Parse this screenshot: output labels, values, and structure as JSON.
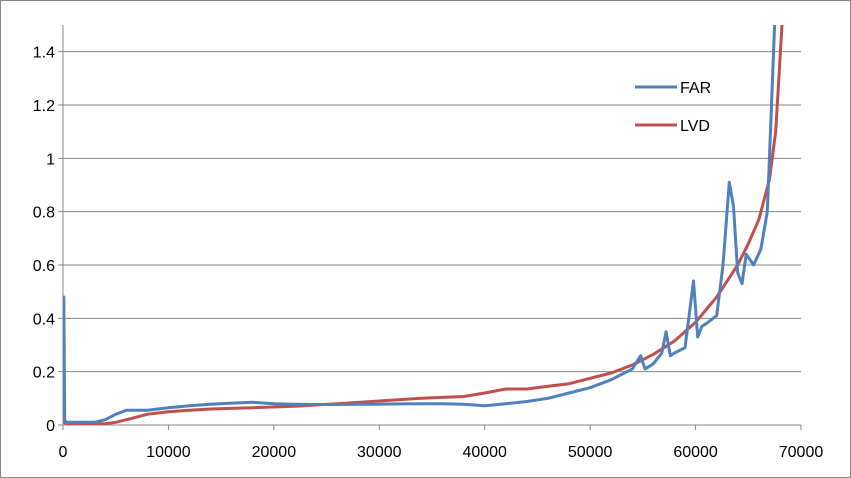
{
  "chart_data": {
    "type": "line",
    "title": "",
    "xlabel": "",
    "ylabel": "",
    "xlim": [
      0,
      70000
    ],
    "ylim": [
      0,
      1.5
    ],
    "x_ticks": [
      0,
      10000,
      20000,
      30000,
      40000,
      50000,
      60000,
      70000
    ],
    "y_ticks": [
      0,
      0.2,
      0.4,
      0.6,
      0.8,
      1,
      1.2,
      1.4
    ],
    "x_tick_labels": [
      "0",
      "10000",
      "20000",
      "30000",
      "40000",
      "50000",
      "60000",
      "70000"
    ],
    "y_tick_labels": [
      "0",
      "0.2",
      "0.4",
      "0.6",
      "0.8",
      "1",
      "1.2",
      "1.4"
    ],
    "grid": true,
    "legend_position": "top-right",
    "series": [
      {
        "name": "FAR",
        "color": "#4F81BD",
        "x": [
          0,
          80,
          160,
          300,
          1000,
          2000,
          3000,
          4000,
          5000,
          6000,
          7000,
          8000,
          9000,
          10000,
          12000,
          14000,
          16000,
          18000,
          20000,
          22000,
          24000,
          26000,
          28000,
          30000,
          32000,
          34000,
          36000,
          38000,
          40000,
          42000,
          44000,
          46000,
          48000,
          50000,
          51000,
          52000,
          53000,
          54000,
          54800,
          55200,
          56000,
          56800,
          57200,
          57600,
          58000,
          59000,
          59800,
          60200,
          60600,
          61000,
          62000,
          62600,
          63200,
          63600,
          64000,
          64400,
          64800,
          65500,
          66200,
          66800,
          67200,
          67500
        ],
        "y": [
          0.01,
          0.48,
          0.02,
          0.01,
          0.01,
          0.01,
          0.01,
          0.02,
          0.04,
          0.055,
          0.055,
          0.055,
          0.06,
          0.065,
          0.072,
          0.078,
          0.082,
          0.085,
          0.08,
          0.078,
          0.077,
          0.077,
          0.078,
          0.078,
          0.079,
          0.08,
          0.08,
          0.078,
          0.072,
          0.08,
          0.088,
          0.1,
          0.12,
          0.14,
          0.155,
          0.17,
          0.19,
          0.21,
          0.26,
          0.21,
          0.23,
          0.27,
          0.35,
          0.26,
          0.27,
          0.29,
          0.54,
          0.33,
          0.37,
          0.38,
          0.41,
          0.6,
          0.91,
          0.82,
          0.57,
          0.53,
          0.64,
          0.6,
          0.66,
          0.8,
          1.2,
          1.5
        ]
      },
      {
        "name": "LVD",
        "color": "#C0504D",
        "x": [
          0,
          100,
          300,
          1000,
          2000,
          3000,
          4000,
          5000,
          6000,
          8000,
          10000,
          12000,
          14000,
          18000,
          22000,
          26000,
          30000,
          34000,
          38000,
          40000,
          42000,
          44000,
          46000,
          48000,
          50000,
          52000,
          54000,
          56000,
          58000,
          60000,
          62000,
          64000,
          65000,
          66000,
          67000,
          67600,
          68200
        ],
        "y": [
          0.04,
          0.01,
          0.005,
          0.005,
          0.005,
          0.005,
          0.005,
          0.01,
          0.02,
          0.04,
          0.05,
          0.055,
          0.06,
          0.065,
          0.07,
          0.08,
          0.09,
          0.1,
          0.107,
          0.12,
          0.135,
          0.135,
          0.145,
          0.155,
          0.175,
          0.195,
          0.225,
          0.265,
          0.315,
          0.385,
          0.48,
          0.6,
          0.68,
          0.77,
          0.92,
          1.1,
          1.5
        ]
      }
    ]
  }
}
